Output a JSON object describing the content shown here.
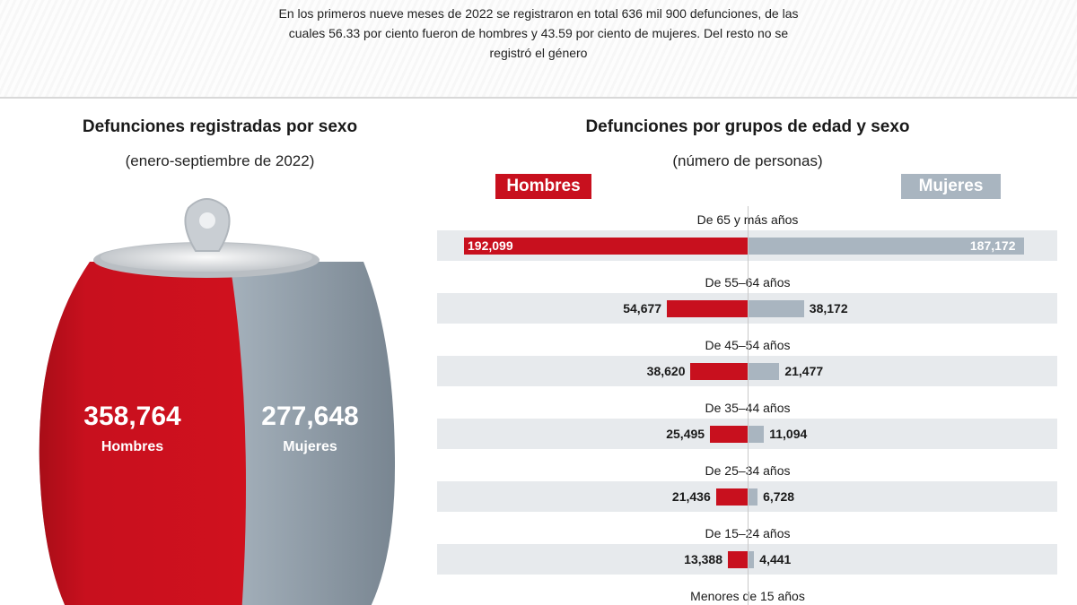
{
  "intro": "En los primeros nueve meses de 2022 se registraron en total 636 mil 900 defunciones, de las cuales 56.33 por ciento fueron de hombres y 43.59 por ciento de mujeres. Del resto no se registró el género",
  "colors": {
    "hombres": "#c8101e",
    "mujeres": "#a9b5c0",
    "row_bg": "#e7eaed"
  },
  "chart_data": [
    {
      "type": "pie",
      "title": "Defunciones registradas por sexo",
      "subtitle": "(enero-septiembre de 2022)",
      "icon": "soda-can-icon",
      "categories": [
        "Hombres",
        "Mujeres"
      ],
      "values": [
        358764,
        277648
      ],
      "value_labels": [
        "358,764",
        "277,648"
      ]
    },
    {
      "type": "bar",
      "orientation": "horizontal-diverging",
      "title": "Defunciones por grupos de edad y sexo",
      "subtitle": "(número de personas)",
      "categories": [
        "De 65 y más años",
        "De 55–64 años",
        "De 45–54 años",
        "De 35–44 años",
        "De 25–34 años",
        "De 15–24 años",
        "Menores de 15 años"
      ],
      "series": [
        {
          "name": "Hombres",
          "values": [
            192099,
            54677,
            38620,
            25495,
            21436,
            13388,
            null
          ],
          "labels": [
            "192,099",
            "54,677",
            "38,620",
            "25,495",
            "21,436",
            "13,388",
            ""
          ]
        },
        {
          "name": "Mujeres",
          "values": [
            187172,
            38172,
            21477,
            11094,
            6728,
            4441,
            null
          ],
          "labels": [
            "187,172",
            "38,172",
            "21,477",
            "11,094",
            "6,728",
            "4,441",
            ""
          ]
        }
      ]
    }
  ]
}
